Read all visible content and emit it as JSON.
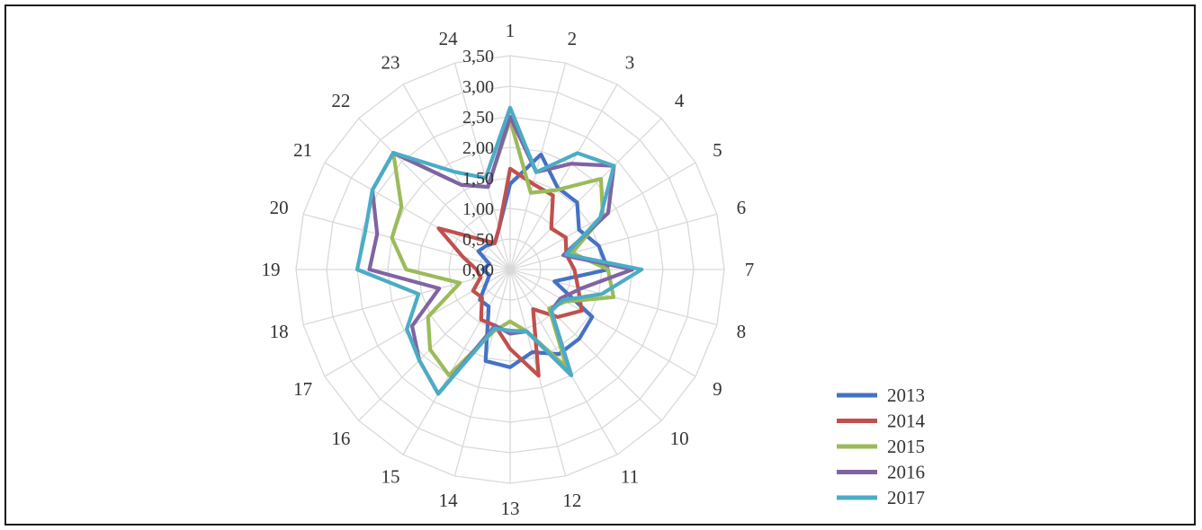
{
  "chart_data": {
    "type": "radar",
    "title": "",
    "categories": [
      "1",
      "2",
      "3",
      "4",
      "5",
      "6",
      "7",
      "8",
      "9",
      "10",
      "11",
      "12",
      "13",
      "14",
      "15",
      "16",
      "17",
      "18",
      "19",
      "20",
      "21",
      "22",
      "23",
      "24"
    ],
    "axis": {
      "range": [
        0,
        3.5
      ],
      "ticks": [
        "0,00",
        "0,50",
        "1,00",
        "1,50",
        "2,00",
        "2,50",
        "3,00",
        "3,50"
      ],
      "gridlines": true
    },
    "legend": {
      "position": "right-bottom"
    },
    "series": [
      {
        "name": "2013",
        "color": "#4472C4",
        "values": [
          1.4,
          1.95,
          1.55,
          1.55,
          1.3,
          1.5,
          1.6,
          0.75,
          1.55,
          1.6,
          1.6,
          1.4,
          1.6,
          1.55,
          0.7,
          0.7,
          0.45,
          0.35,
          0.45,
          0.35,
          0.6,
          0.55,
          0.5,
          0.7
        ]
      },
      {
        "name": "2014",
        "color": "#C0504D",
        "values": [
          1.65,
          1.45,
          1.4,
          0.95,
          1.05,
          0.95,
          1.05,
          1.15,
          1.35,
          1.1,
          0.75,
          1.8,
          1.3,
          0.95,
          0.95,
          0.65,
          0.7,
          0.5,
          0.55,
          0.8,
          1.35,
          0.7,
          0.5,
          0.7
        ]
      },
      {
        "name": "2015",
        "color": "#9BBB59",
        "values": [
          2.45,
          1.3,
          1.5,
          2.1,
          1.75,
          1.05,
          1.6,
          1.75,
          1.05,
          0.9,
          1.85,
          1.05,
          0.85,
          1.05,
          2.0,
          1.85,
          1.55,
          0.85,
          1.7,
          2.0,
          2.05,
          2.7,
          1.6,
          1.4
        ]
      },
      {
        "name": "2016",
        "color": "#8064A2",
        "values": [
          2.5,
          1.65,
          2.0,
          2.4,
          1.85,
          0.9,
          2.0,
          1.2,
          0.95,
          0.95,
          2.0,
          1.05,
          1.05,
          0.95,
          2.35,
          2.1,
          1.85,
          1.2,
          2.3,
          2.25,
          2.6,
          2.7,
          1.6,
          1.4
        ]
      },
      {
        "name": "2017",
        "color": "#4BACC6",
        "values": [
          2.65,
          1.65,
          2.2,
          2.4,
          1.7,
          0.95,
          2.15,
          1.55,
          1.0,
          0.95,
          2.0,
          1.05,
          1.0,
          1.0,
          2.35,
          2.1,
          1.95,
          1.55,
          2.5,
          2.45,
          2.6,
          2.7,
          1.85,
          1.55
        ]
      }
    ]
  }
}
